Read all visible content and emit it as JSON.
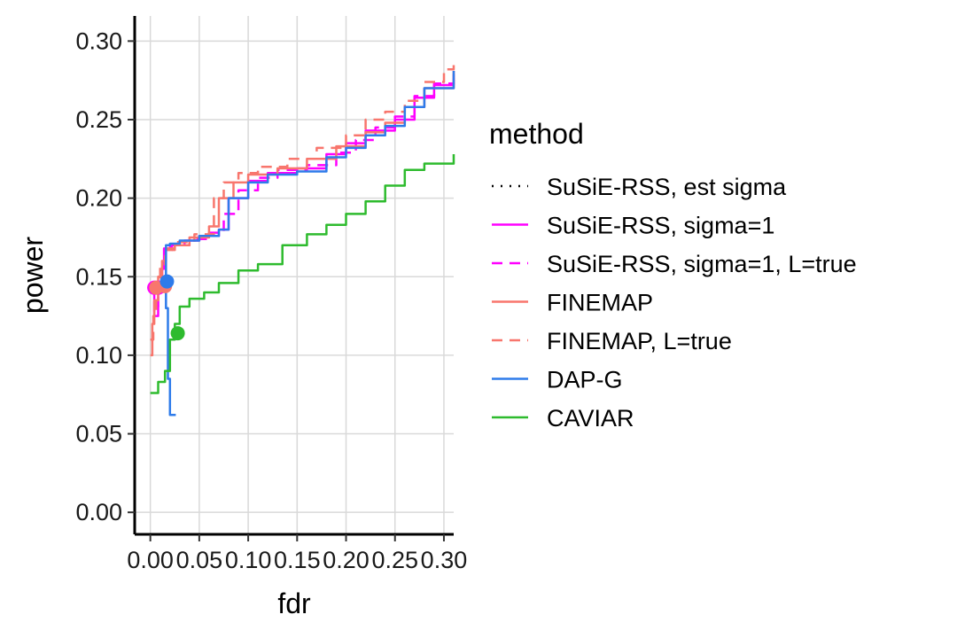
{
  "chart_data": {
    "type": "line",
    "xlabel": "fdr",
    "ylabel": "power",
    "xlim": [
      -0.016,
      0.31
    ],
    "ylim": [
      -0.014,
      0.316
    ],
    "x_ticks": [
      0.0,
      0.05,
      0.1,
      0.15,
      0.2,
      0.25,
      0.3
    ],
    "x_tick_labels": [
      "0.00",
      "0.05",
      "0.10",
      "0.15",
      "0.20",
      "0.25",
      "0.30"
    ],
    "y_ticks": [
      0.0,
      0.05,
      0.1,
      0.15,
      0.2,
      0.25,
      0.3
    ],
    "y_tick_labels": [
      "0.00",
      "0.05",
      "0.10",
      "0.15",
      "0.20",
      "0.25",
      "0.30"
    ],
    "grid": true,
    "legend": {
      "title": "method",
      "position": "right"
    },
    "series": [
      {
        "name": "SuSiE-RSS, est sigma",
        "color": "#000000",
        "dash": "dotted",
        "x": [],
        "y": []
      },
      {
        "name": "SuSiE-RSS, sigma=1",
        "color": "#FF00FF",
        "dash": "solid",
        "x": [
          0.0,
          0.004,
          0.008,
          0.012,
          0.014,
          0.02,
          0.035,
          0.05,
          0.07,
          0.08,
          0.1,
          0.12,
          0.15,
          0.18,
          0.2,
          0.22,
          0.25,
          0.27,
          0.29,
          0.31
        ],
        "y": [
          0.143,
          0.125,
          0.14,
          0.155,
          0.168,
          0.17,
          0.173,
          0.176,
          0.18,
          0.2,
          0.211,
          0.216,
          0.219,
          0.228,
          0.235,
          0.243,
          0.25,
          0.264,
          0.272,
          0.279
        ],
        "point": [
          0.004,
          0.143
        ]
      },
      {
        "name": "SuSiE-RSS, sigma=1, L=true",
        "color": "#FF00FF",
        "dash": "dashed",
        "x": [
          0.0,
          0.004,
          0.008,
          0.012,
          0.015,
          0.022,
          0.04,
          0.06,
          0.075,
          0.09,
          0.11,
          0.13,
          0.16,
          0.19,
          0.21,
          0.23,
          0.25,
          0.27,
          0.29,
          0.31
        ],
        "y": [
          0.143,
          0.128,
          0.142,
          0.156,
          0.167,
          0.17,
          0.174,
          0.178,
          0.19,
          0.205,
          0.213,
          0.218,
          0.221,
          0.229,
          0.237,
          0.245,
          0.252,
          0.265,
          0.273,
          0.28
        ],
        "point": [
          0.008,
          0.143
        ]
      },
      {
        "name": "FINEMAP",
        "color": "#F8766D",
        "dash": "solid",
        "x": [
          0.0,
          0.002,
          0.004,
          0.008,
          0.012,
          0.016,
          0.025,
          0.04,
          0.06,
          0.07,
          0.085,
          0.1,
          0.13,
          0.16,
          0.19,
          0.22,
          0.24,
          0.26,
          0.28,
          0.31
        ],
        "y": [
          0.1,
          0.12,
          0.135,
          0.15,
          0.16,
          0.167,
          0.17,
          0.175,
          0.182,
          0.2,
          0.21,
          0.215,
          0.219,
          0.225,
          0.233,
          0.242,
          0.248,
          0.258,
          0.27,
          0.281
        ],
        "point": [
          0.015,
          0.144
        ]
      },
      {
        "name": "FINEMAP, L=true",
        "color": "#F8766D",
        "dash": "dashed",
        "x": [
          0.0,
          0.003,
          0.006,
          0.01,
          0.015,
          0.025,
          0.045,
          0.065,
          0.075,
          0.09,
          0.11,
          0.14,
          0.17,
          0.2,
          0.22,
          0.24,
          0.26,
          0.28,
          0.3,
          0.31
        ],
        "y": [
          0.11,
          0.125,
          0.142,
          0.158,
          0.168,
          0.172,
          0.177,
          0.2,
          0.21,
          0.216,
          0.22,
          0.225,
          0.232,
          0.24,
          0.25,
          0.255,
          0.262,
          0.274,
          0.282,
          0.285
        ],
        "point": [
          0.006,
          0.143
        ]
      },
      {
        "name": "DAP-G",
        "color": "#2E7BEA",
        "dash": "solid",
        "x": [
          0.026,
          0.02,
          0.018,
          0.016,
          0.016,
          0.02,
          0.03,
          0.05,
          0.07,
          0.08,
          0.1,
          0.12,
          0.15,
          0.18,
          0.2,
          0.22,
          0.24,
          0.26,
          0.28,
          0.31
        ],
        "y": [
          0.062,
          0.085,
          0.13,
          0.148,
          0.17,
          0.171,
          0.173,
          0.176,
          0.18,
          0.2,
          0.21,
          0.215,
          0.217,
          0.226,
          0.232,
          0.24,
          0.246,
          0.258,
          0.27,
          0.281
        ],
        "point": [
          0.017,
          0.147
        ]
      },
      {
        "name": "CAVIAR",
        "color": "#2EBB2E",
        "dash": "solid",
        "x": [
          0.0,
          0.008,
          0.015,
          0.02,
          0.025,
          0.03,
          0.04,
          0.055,
          0.07,
          0.09,
          0.11,
          0.135,
          0.16,
          0.18,
          0.2,
          0.22,
          0.24,
          0.26,
          0.28,
          0.31
        ],
        "y": [
          0.076,
          0.083,
          0.09,
          0.11,
          0.12,
          0.131,
          0.136,
          0.14,
          0.146,
          0.154,
          0.158,
          0.17,
          0.177,
          0.183,
          0.19,
          0.198,
          0.208,
          0.218,
          0.222,
          0.228
        ],
        "point": [
          0.028,
          0.114
        ]
      }
    ]
  }
}
